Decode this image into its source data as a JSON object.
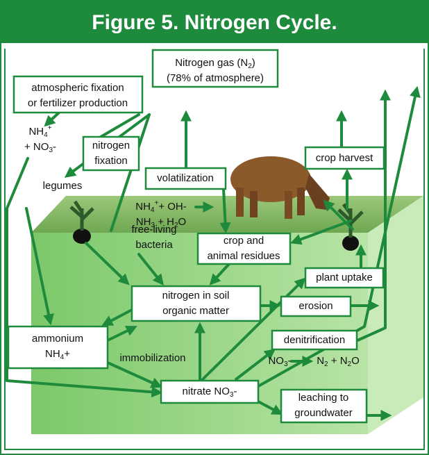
{
  "title": "Figure 5.  Nitrogen Cycle.",
  "labels": [
    {
      "boxed": true,
      "lines": [
        [
          {
            "t": "Nitrogen gas (N"
          },
          {
            "sub": "2"
          },
          {
            "t": ")"
          }
        ],
        [
          {
            "t": "(78% of atmosphere)"
          }
        ]
      ]
    },
    {
      "boxed": true,
      "lines": [
        [
          {
            "t": "atmospheric fixation"
          }
        ],
        [
          {
            "t": "or fertilizer production"
          }
        ]
      ]
    },
    {
      "boxed": false,
      "lines": [
        [
          {
            "t": "NH"
          },
          {
            "sub": "4"
          },
          {
            "sup": "+"
          }
        ],
        [
          {
            "t": "+ NO"
          },
          {
            "sub": "3"
          },
          {
            "t": "-"
          }
        ]
      ]
    },
    {
      "boxed": true,
      "lines": [
        [
          {
            "t": "nitrogen"
          }
        ],
        [
          {
            "t": "fixation"
          }
        ]
      ]
    },
    {
      "boxed": false,
      "lines": [
        [
          {
            "t": "legumes"
          }
        ]
      ]
    },
    {
      "boxed": true,
      "lines": [
        [
          {
            "t": "volatilization"
          }
        ]
      ]
    },
    {
      "boxed": false,
      "lines": [
        [
          {
            "t": "NH"
          },
          {
            "sub": "4"
          },
          {
            "sup": "+"
          },
          {
            "t": "+ OH-"
          }
        ],
        [
          {
            "t": "NH"
          },
          {
            "sub": "3"
          },
          {
            "t": " + H"
          },
          {
            "sub": "2"
          },
          {
            "t": "O"
          }
        ]
      ]
    },
    {
      "boxed": true,
      "lines": [
        [
          {
            "t": "crop harvest"
          }
        ]
      ]
    },
    {
      "boxed": false,
      "lines": [
        [
          {
            "t": "free-living"
          }
        ],
        [
          {
            "t": "bacteria"
          }
        ]
      ]
    },
    {
      "boxed": true,
      "lines": [
        [
          {
            "t": "crop and"
          }
        ],
        [
          {
            "t": "animal residues"
          }
        ]
      ]
    },
    {
      "boxed": true,
      "lines": [
        [
          {
            "t": "plant uptake"
          }
        ]
      ]
    },
    {
      "boxed": true,
      "lines": [
        [
          {
            "t": "nitrogen in soil"
          }
        ],
        [
          {
            "t": "organic matter"
          }
        ]
      ]
    },
    {
      "boxed": true,
      "lines": [
        [
          {
            "t": "erosion"
          }
        ]
      ]
    },
    {
      "boxed": true,
      "lines": [
        [
          {
            "t": "ammonium"
          }
        ],
        [
          {
            "t": "NH"
          },
          {
            "sub": "4"
          },
          {
            "t": "+"
          }
        ]
      ]
    },
    {
      "boxed": false,
      "lines": [
        [
          {
            "t": "immobilization"
          }
        ]
      ]
    },
    {
      "boxed": true,
      "lines": [
        [
          {
            "t": "denitrification"
          }
        ]
      ]
    },
    {
      "boxed": false,
      "lines": [
        [
          {
            "t": "NO"
          },
          {
            "sub": "3"
          },
          {
            "t": "-"
          }
        ]
      ]
    },
    {
      "boxed": false,
      "lines": [
        [
          {
            "t": "N"
          },
          {
            "sub": "2"
          },
          {
            "t": " + N"
          },
          {
            "sub": "2"
          },
          {
            "t": "O"
          }
        ]
      ]
    },
    {
      "boxed": true,
      "lines": [
        [
          {
            "t": "nitrate NO"
          },
          {
            "sub": "3"
          },
          {
            "t": "-"
          }
        ]
      ]
    },
    {
      "boxed": true,
      "lines": [
        [
          {
            "t": "leaching to"
          }
        ],
        [
          {
            "t": "groundwater"
          }
        ]
      ]
    }
  ]
}
